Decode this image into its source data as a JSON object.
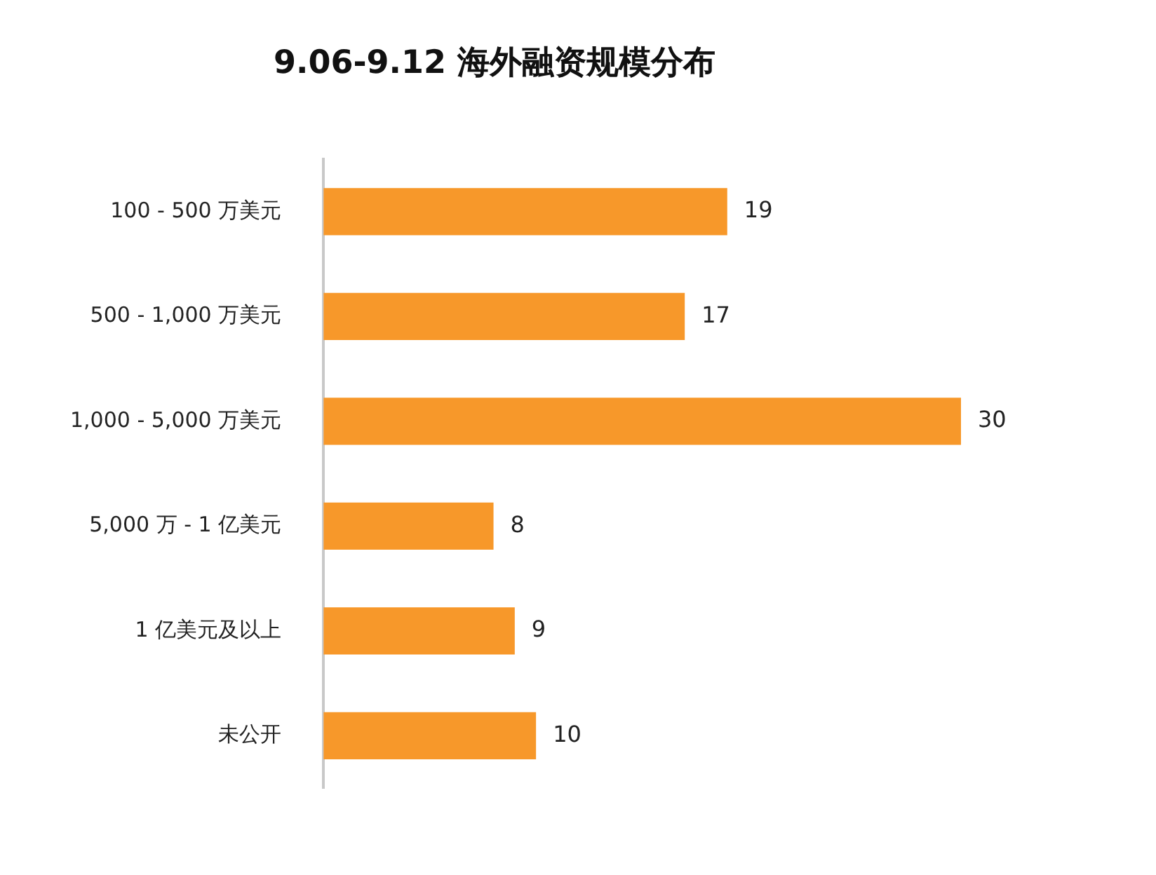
{
  "chart_data": {
    "type": "bar",
    "orientation": "horizontal",
    "title": "9.06-9.12 海外融资规模分布",
    "categories": [
      "100 - 500 万美元",
      "500 - 1,000 万美元",
      "1,000 - 5,000 万美元",
      "5,000 万 - 1 亿美元",
      "1 亿美元及以上",
      "未公开"
    ],
    "values": [
      19,
      17,
      30,
      8,
      9,
      10
    ],
    "color": "#f7982a",
    "data_labels": true,
    "legend": false
  }
}
